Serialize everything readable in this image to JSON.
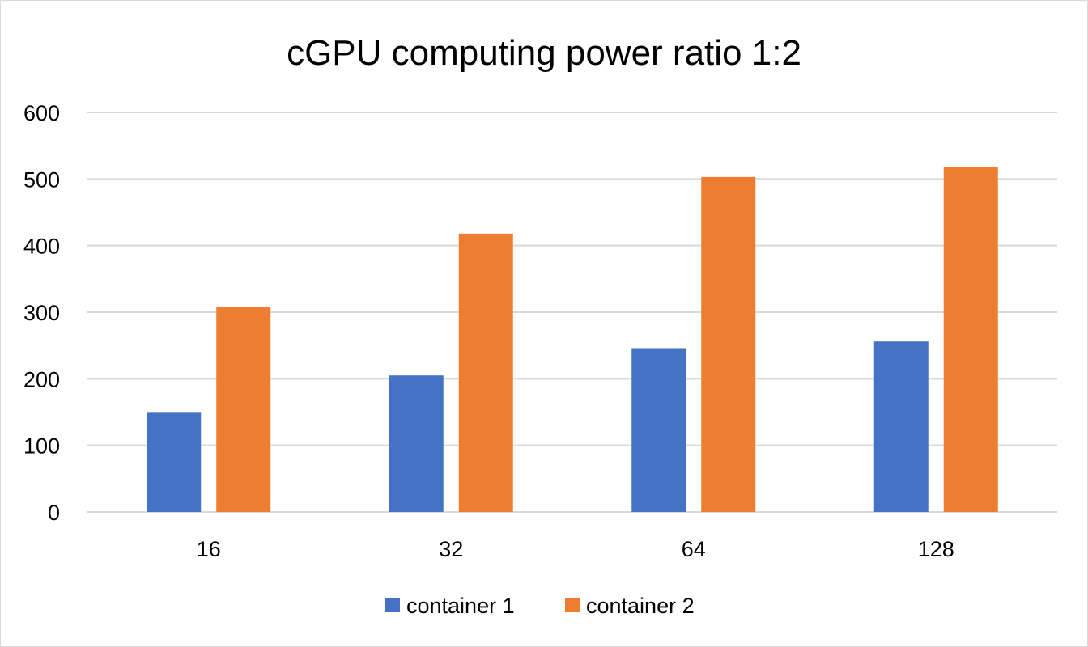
{
  "chart_data": {
    "type": "bar",
    "title": "cGPU computing power ratio 1:2",
    "xlabel": "",
    "ylabel": "",
    "categories": [
      "16",
      "32",
      "64",
      "128"
    ],
    "series": [
      {
        "name": "container 1",
        "color": "#4472C4",
        "values": [
          149,
          205,
          246,
          256
        ]
      },
      {
        "name": "container 2",
        "color": "#ED7D31",
        "values": [
          308,
          418,
          503,
          518
        ]
      }
    ],
    "ylim": [
      0,
      600
    ],
    "yticks": [
      "0",
      "100",
      "200",
      "300",
      "400",
      "500",
      "600"
    ],
    "grid": true,
    "legend_position": "bottom"
  }
}
